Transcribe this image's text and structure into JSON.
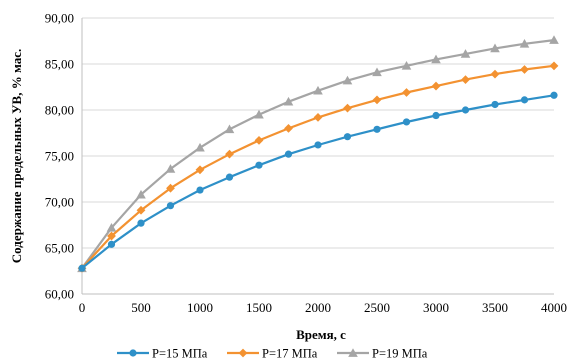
{
  "chart_data": {
    "type": "line",
    "title": "",
    "xlabel": "Время, с",
    "ylabel": "Содержание предельных УВ, % мас.",
    "x": [
      0,
      250,
      500,
      750,
      1000,
      1250,
      1500,
      1750,
      2000,
      2250,
      2500,
      2750,
      3000,
      3250,
      3500,
      3750,
      4000
    ],
    "xlim": [
      0,
      4000
    ],
    "ylim": [
      60,
      90
    ],
    "x_ticks": [
      "0",
      "500",
      "1000",
      "1500",
      "2000",
      "2500",
      "3000",
      "3500",
      "4000"
    ],
    "y_ticks": [
      "60,00",
      "65,00",
      "70,00",
      "75,00",
      "80,00",
      "85,00",
      "90,00"
    ],
    "grid": "horizontal",
    "legend_position": "bottom",
    "series": [
      {
        "name": "P=15 МПа",
        "color": "#2e90c8",
        "marker": "circle",
        "values": [
          62.8,
          65.4,
          67.7,
          69.6,
          71.3,
          72.7,
          74.0,
          75.2,
          76.2,
          77.1,
          77.9,
          78.7,
          79.4,
          80.0,
          80.6,
          81.1,
          81.6
        ]
      },
      {
        "name": "P=17 МПа",
        "color": "#f39231",
        "marker": "diamond",
        "values": [
          62.8,
          66.3,
          69.1,
          71.5,
          73.5,
          75.2,
          76.7,
          78.0,
          79.2,
          80.2,
          81.1,
          81.9,
          82.6,
          83.3,
          83.9,
          84.4,
          84.8
        ]
      },
      {
        "name": "P=19 МПа",
        "color": "#a5a5a5",
        "marker": "triangle",
        "values": [
          62.8,
          67.2,
          70.8,
          73.6,
          75.9,
          77.9,
          79.5,
          80.9,
          82.1,
          83.2,
          84.1,
          84.8,
          85.5,
          86.1,
          86.7,
          87.2,
          87.6
        ]
      }
    ]
  }
}
